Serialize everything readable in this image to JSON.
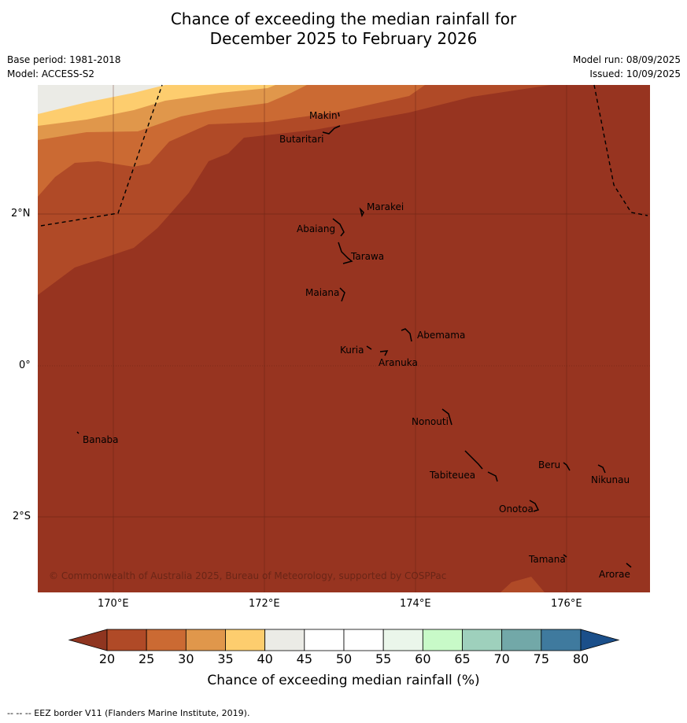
{
  "title_line1": "Chance of exceeding the median rainfall for",
  "title_line2": "December 2025 to February 2026",
  "base_period": "Base period: 1981-2018",
  "model": "Model: ACCESS-S2",
  "model_run": "Model run: 08/09/2025",
  "issued": "Issued: 10/09/2025",
  "copyright": "© Commonwealth of Australia 2025, Bureau of Meteorology, supported by COSPPac",
  "lon_labels": [
    "170°E",
    "172°E",
    "174°E",
    "176°E"
  ],
  "lat_labels": [
    "2°N",
    "0°",
    "2°S"
  ],
  "places": [
    {
      "name": "Makin"
    },
    {
      "name": "Butaritari"
    },
    {
      "name": "Marakei"
    },
    {
      "name": "Abaiang"
    },
    {
      "name": "Tarawa"
    },
    {
      "name": "Maiana"
    },
    {
      "name": "Abemama"
    },
    {
      "name": "Kuria"
    },
    {
      "name": "Aranuka"
    },
    {
      "name": "Nonouti"
    },
    {
      "name": "Banaba"
    },
    {
      "name": "Beru"
    },
    {
      "name": "Nikunau"
    },
    {
      "name": "Tabiteuea"
    },
    {
      "name": "Onotoa"
    },
    {
      "name": "Tamana"
    },
    {
      "name": "Arorae"
    }
  ],
  "colorbar": {
    "ticks": [
      "20",
      "25",
      "30",
      "35",
      "40",
      "45",
      "50",
      "55",
      "60",
      "65",
      "70",
      "75",
      "80"
    ],
    "colors": [
      "#b04a27",
      "#cb6a33",
      "#e0974b",
      "#fdcd6e",
      "#ebebe6",
      "#ffffff",
      "#ffffff",
      "#eaf6ea",
      "#c8fac8",
      "#9ed0bc",
      "#72a8a8",
      "#3f7a9e"
    ],
    "under_color": "#8f3520",
    "over_color": "#1b4f8a",
    "label": "Chance of exceeding median rainfall (%)"
  },
  "map_colors": {
    "base": "#973420",
    "c25": "#b04a27",
    "c30": "#cb6a33",
    "c35": "#e0974b",
    "c40": "#fdcd6e",
    "c45": "#ebebe6"
  },
  "footnote": "--  --  -- EEZ border V11 (Flanders Marine Institute, 2019)."
}
